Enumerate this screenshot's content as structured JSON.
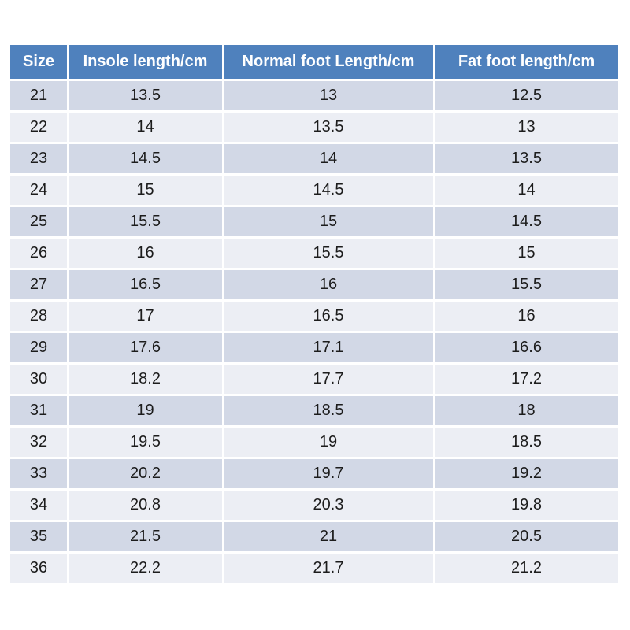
{
  "chart_data": {
    "type": "table",
    "columns": [
      "Size",
      "Insole length/cm",
      "Normal foot Length/cm",
      "Fat foot length/cm"
    ],
    "rows": [
      [
        "21",
        "13.5",
        "13",
        "12.5"
      ],
      [
        "22",
        "14",
        "13.5",
        "13"
      ],
      [
        "23",
        "14.5",
        "14",
        "13.5"
      ],
      [
        "24",
        "15",
        "14.5",
        "14"
      ],
      [
        "25",
        "15.5",
        "15",
        "14.5"
      ],
      [
        "26",
        "16",
        "15.5",
        "15"
      ],
      [
        "27",
        "16.5",
        "16",
        "15.5"
      ],
      [
        "28",
        "17",
        "16.5",
        "16"
      ],
      [
        "29",
        "17.6",
        "17.1",
        "16.6"
      ],
      [
        "30",
        "18.2",
        "17.7",
        "17.2"
      ],
      [
        "31",
        "19",
        "18.5",
        "18"
      ],
      [
        "32",
        "19.5",
        "19",
        "18.5"
      ],
      [
        "33",
        "20.2",
        "19.7",
        "19.2"
      ],
      [
        "34",
        "20.8",
        "20.3",
        "19.8"
      ],
      [
        "35",
        "21.5",
        "21",
        "20.5"
      ],
      [
        "36",
        "22.2",
        "21.7",
        "21.2"
      ]
    ],
    "colors": {
      "header_bg": "#4f81bd",
      "header_text": "#ffffff",
      "row_dark_bg": "#d2d8e6",
      "row_light_bg": "#eceef4",
      "cell_text": "#1c1c1c",
      "grid_gap": "#ffffff"
    },
    "legend": "none",
    "grid": "white-gaps-between-cells"
  }
}
